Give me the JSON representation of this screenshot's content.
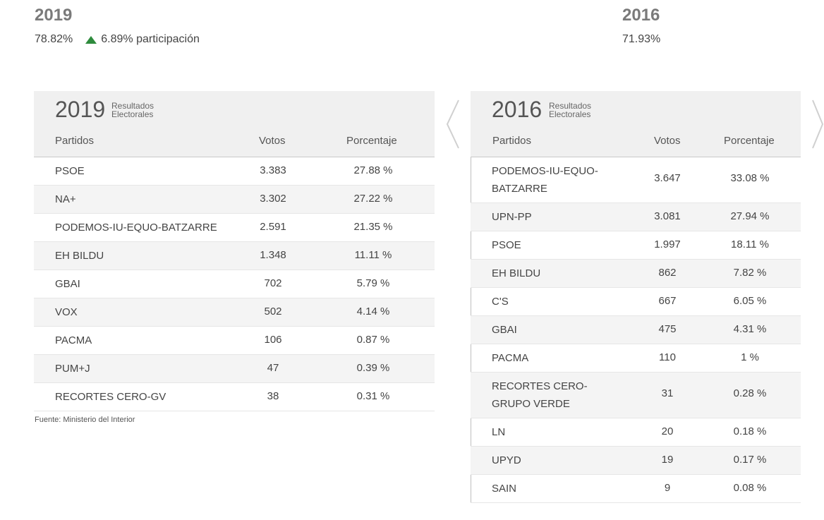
{
  "summary": {
    "year_2019": "2019",
    "participation_2019": "78.82%",
    "change": "6.89% participación",
    "year_2016": "2016",
    "participation_2016": "71.93%"
  },
  "colors": {
    "up_arrow": "#2e8b3d",
    "header_bg": "#f0f0f0",
    "alt_row": "#f4f4f4"
  },
  "table_2019": {
    "year": "2019",
    "label": "Resultados Electorales",
    "headers": {
      "party": "Partidos",
      "votes": "Votos",
      "pct": "Porcentaje"
    },
    "rows": [
      {
        "party": "PSOE",
        "votes": "3.383",
        "pct": "27.88 %"
      },
      {
        "party": "NA+",
        "votes": "3.302",
        "pct": "27.22 %"
      },
      {
        "party": "PODEMOS-IU-EQUO-BATZARRE",
        "votes": "2.591",
        "pct": "21.35 %"
      },
      {
        "party": "EH BILDU",
        "votes": "1.348",
        "pct": "11.11 %"
      },
      {
        "party": "GBAI",
        "votes": "702",
        "pct": "5.79 %"
      },
      {
        "party": "VOX",
        "votes": "502",
        "pct": "4.14 %"
      },
      {
        "party": "PACMA",
        "votes": "106",
        "pct": "0.87 %"
      },
      {
        "party": "PUM+J",
        "votes": "47",
        "pct": "0.39 %"
      },
      {
        "party": "RECORTES CERO-GV",
        "votes": "38",
        "pct": "0.31 %"
      }
    ]
  },
  "table_2016": {
    "year": "2016",
    "label": "Resultados Electorales",
    "headers": {
      "party": "Partidos",
      "votes": "Votos",
      "pct": "Porcentaje"
    },
    "rows": [
      {
        "party": "PODEMOS-IU-EQUO-BATZARRE",
        "votes": "3.647",
        "pct": "33.08 %"
      },
      {
        "party": "UPN-PP",
        "votes": "3.081",
        "pct": "27.94 %"
      },
      {
        "party": "PSOE",
        "votes": "1.997",
        "pct": "18.11 %"
      },
      {
        "party": "EH BILDU",
        "votes": "862",
        "pct": "7.82 %"
      },
      {
        "party": "C'S",
        "votes": "667",
        "pct": "6.05 %"
      },
      {
        "party": "GBAI",
        "votes": "475",
        "pct": "4.31 %"
      },
      {
        "party": "PACMA",
        "votes": "110",
        "pct": "1 %"
      },
      {
        "party": "RECORTES CERO-GRUPO VERDE",
        "votes": "31",
        "pct": "0.28 %"
      },
      {
        "party": "LN",
        "votes": "20",
        "pct": "0.18 %"
      },
      {
        "party": "UPYD",
        "votes": "19",
        "pct": "0.17 %"
      },
      {
        "party": "SAIN",
        "votes": "9",
        "pct": "0.08 %"
      }
    ]
  },
  "source": "Fuente: Ministerio del Interior",
  "icons": {
    "prev": "chevron-left-icon",
    "next": "chevron-right-icon",
    "up": "triangle-up-icon"
  }
}
